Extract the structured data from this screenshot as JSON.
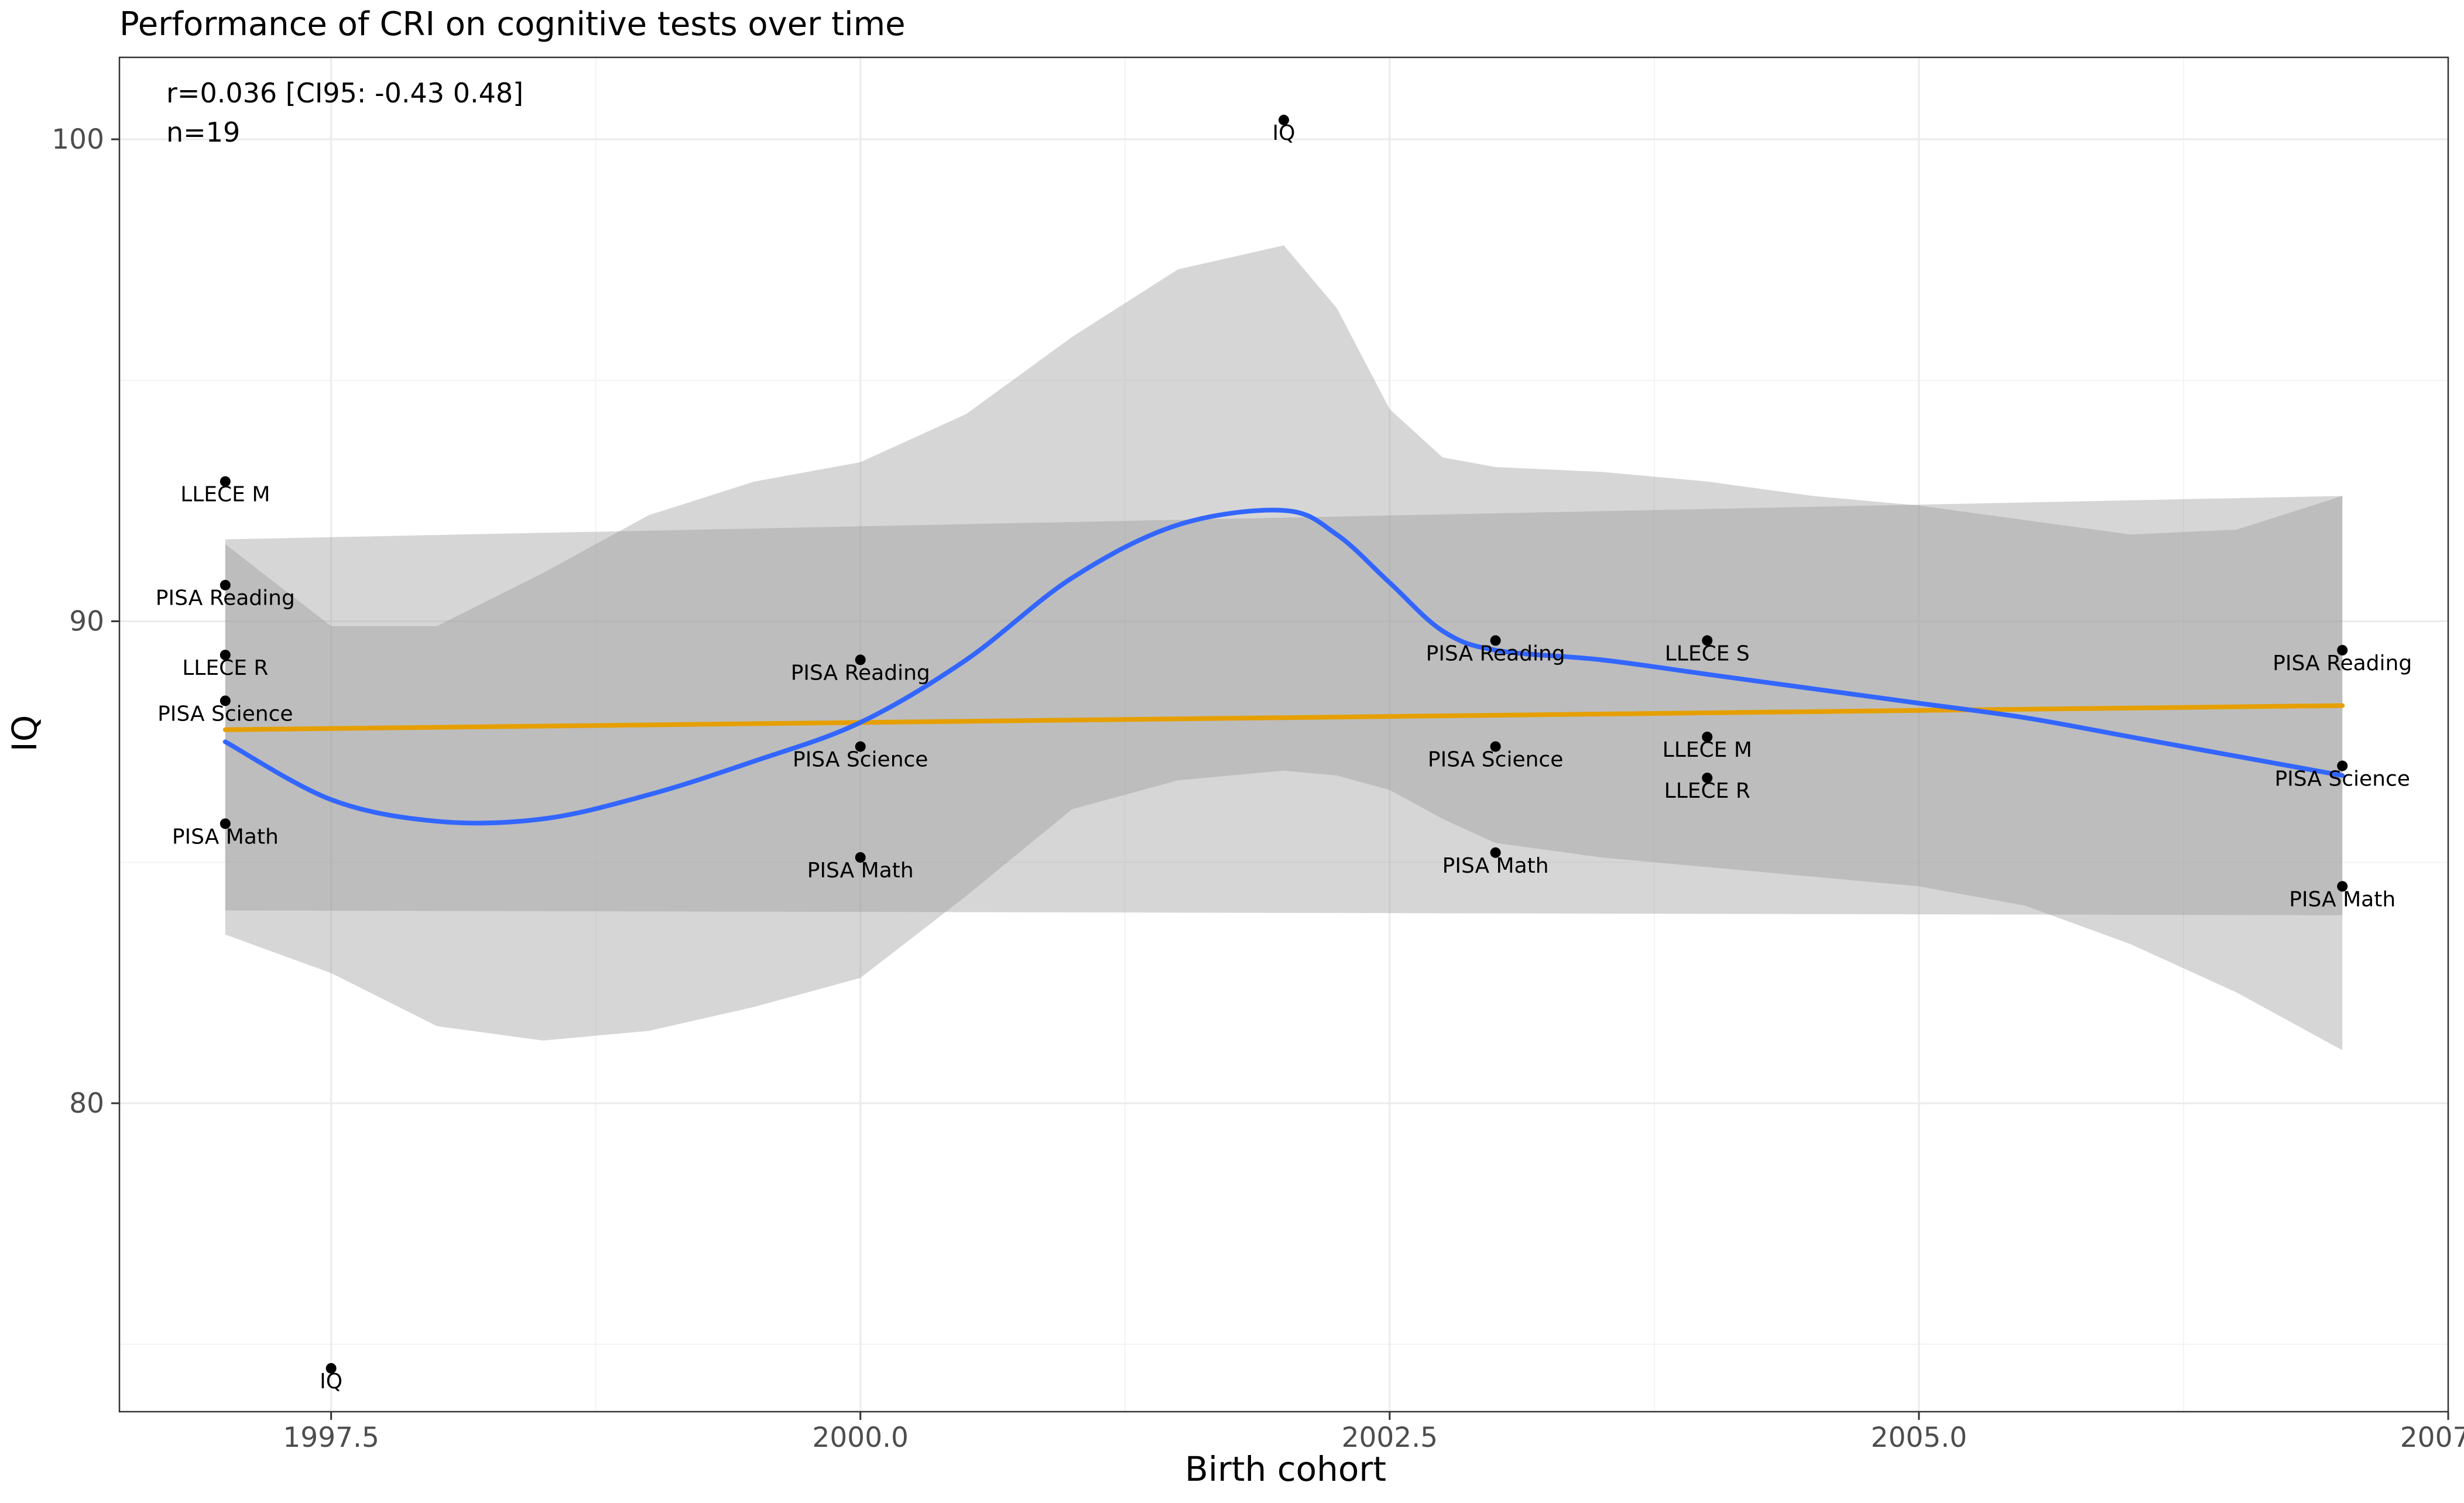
{
  "chart_data": {
    "type": "scatter",
    "title": "Performance of CRI on cognitive tests over time",
    "xlabel": "Birth cohort",
    "ylabel": "IQ",
    "xlim": [
      1996.5,
      2007.5
    ],
    "ylim": [
      73.6,
      101.7
    ],
    "x_ticks": [
      1997.5,
      2000.0,
      2002.5,
      2005.0,
      2007.5
    ],
    "x_tick_labels": [
      "1997.5",
      "2000.0",
      "2002.5",
      "2005.0",
      "2007.5"
    ],
    "y_ticks": [
      80,
      90,
      100
    ],
    "y_tick_labels": [
      "80",
      "90",
      "100"
    ],
    "grid": true,
    "annotations": [
      "r=0.036 [CI95: -0.43 0.48]",
      "n=19"
    ],
    "points": [
      {
        "x": 1997.0,
        "y": 92.9,
        "label": "LLECE M"
      },
      {
        "x": 1997.0,
        "y": 90.75,
        "label": "PISA Reading"
      },
      {
        "x": 1997.0,
        "y": 89.3,
        "label": "LLECE R"
      },
      {
        "x": 1997.0,
        "y": 88.35,
        "label": "PISA Science"
      },
      {
        "x": 1997.0,
        "y": 85.8,
        "label": "PISA Math"
      },
      {
        "x": 1997.5,
        "y": 74.5,
        "label": "IQ"
      },
      {
        "x": 2000.0,
        "y": 89.2,
        "label": "PISA Reading"
      },
      {
        "x": 2000.0,
        "y": 87.4,
        "label": "PISA Science"
      },
      {
        "x": 2000.0,
        "y": 85.1,
        "label": "PISA Math"
      },
      {
        "x": 2002.0,
        "y": 100.4,
        "label": "IQ"
      },
      {
        "x": 2003.0,
        "y": 89.6,
        "label": "PISA Reading"
      },
      {
        "x": 2003.0,
        "y": 87.4,
        "label": "PISA Science"
      },
      {
        "x": 2003.0,
        "y": 85.2,
        "label": "PISA Math"
      },
      {
        "x": 2004.0,
        "y": 89.6,
        "label": "LLECE S"
      },
      {
        "x": 2004.0,
        "y": 87.6,
        "label": "LLECE M"
      },
      {
        "x": 2004.0,
        "y": 86.75,
        "label": "LLECE R"
      },
      {
        "x": 2007.0,
        "y": 89.4,
        "label": "PISA Reading"
      },
      {
        "x": 2007.0,
        "y": 87.0,
        "label": "PISA Science"
      },
      {
        "x": 2007.0,
        "y": 84.5,
        "label": "PISA Math"
      }
    ],
    "linear_fit": {
      "color": "#E69F00",
      "x": [
        1997.0,
        2007.0
      ],
      "y": [
        87.75,
        88.25
      ],
      "ci_lower": [
        84.0,
        83.9
      ],
      "ci_upper": [
        91.7,
        92.6
      ]
    },
    "loess_fit": {
      "color": "#3366FF",
      "x": [
        1997.0,
        1997.5,
        1998.0,
        1998.5,
        1999.0,
        1999.5,
        2000.0,
        2000.5,
        2001.0,
        2001.5,
        2002.0,
        2002.25,
        2002.5,
        2002.75,
        2003.0,
        2003.5,
        2004.0,
        2004.5,
        2005.0,
        2005.5,
        2006.0,
        2006.5,
        2007.0
      ],
      "y": [
        87.5,
        86.3,
        85.85,
        85.9,
        86.4,
        87.1,
        87.9,
        89.2,
        90.9,
        92.0,
        92.3,
        91.8,
        90.8,
        89.8,
        89.4,
        89.2,
        88.9,
        88.6,
        88.3,
        88.0,
        87.6,
        87.2,
        86.8
      ],
      "ci_lower": [
        83.5,
        82.7,
        81.6,
        81.3,
        81.5,
        82.0,
        82.6,
        84.3,
        86.1,
        86.7,
        86.9,
        86.8,
        86.5,
        85.9,
        85.4,
        85.1,
        84.9,
        84.7,
        84.5,
        84.1,
        83.3,
        82.3,
        81.1
      ],
      "ci_upper": [
        91.6,
        89.9,
        89.9,
        91.0,
        92.2,
        92.9,
        93.3,
        94.3,
        95.9,
        97.3,
        97.8,
        96.5,
        94.4,
        93.4,
        93.2,
        93.1,
        92.9,
        92.6,
        92.4,
        92.1,
        91.8,
        91.9,
        92.6
      ]
    }
  }
}
